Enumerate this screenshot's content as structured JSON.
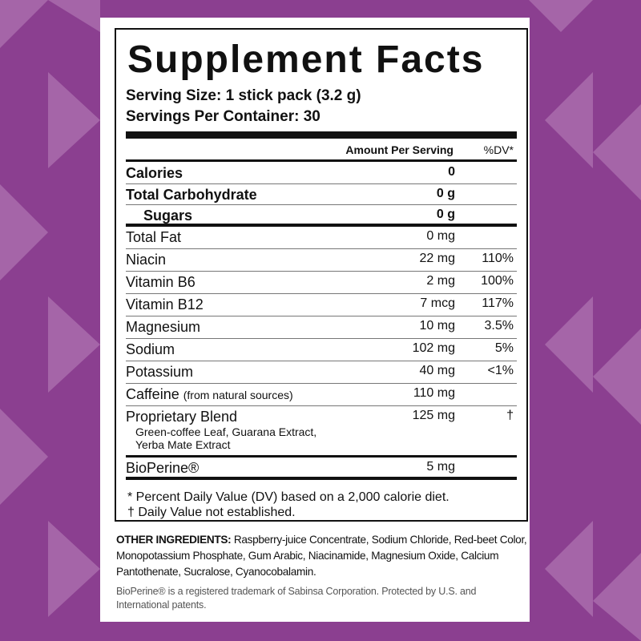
{
  "colors": {
    "background": "#8b3f90",
    "triangles": "#a565a8",
    "panel": "#ffffff"
  },
  "title": "Supplement Facts",
  "serving_size": "Serving Size: 1 stick pack (3.2 g)",
  "servings_per_container": "Servings Per Container: 30",
  "header": {
    "amount": "Amount Per Serving",
    "dv": "%DV*"
  },
  "rows": [
    {
      "name": "Calories",
      "amount": "0",
      "dv": ""
    },
    {
      "name": "Total Carbohydrate",
      "amount": "0 g",
      "dv": ""
    },
    {
      "name": "Sugars",
      "amount": "0 g",
      "dv": ""
    },
    {
      "name": "Total Fat",
      "amount": "0 mg",
      "dv": ""
    },
    {
      "name": "Niacin",
      "amount": "22 mg",
      "dv": "110%"
    },
    {
      "name": "Vitamin B6",
      "amount": "2 mg",
      "dv": "100%"
    },
    {
      "name": "Vitamin B12",
      "amount": "7 mcg",
      "dv": "117%"
    },
    {
      "name": "Magnesium",
      "amount": "10 mg",
      "dv": "3.5%"
    },
    {
      "name": "Sodium",
      "amount": "102 mg",
      "dv": "5%"
    },
    {
      "name": "Potassium",
      "amount": "40 mg",
      "dv": "<1%"
    },
    {
      "name": "Caffeine",
      "note": "(from natural sources)",
      "amount": "110 mg",
      "dv": ""
    },
    {
      "name": "Proprietary Blend",
      "sub": "Green-coffee Leaf, Guarana Extract,",
      "sub2": "Yerba Mate Extract",
      "amount": "125 mg",
      "dv": "†"
    },
    {
      "name": "BioPerine®",
      "amount": "5 mg",
      "dv": ""
    }
  ],
  "footnotes": [
    "* Percent Daily Value (DV) based on a 2,000 calorie diet.",
    "† Daily Value not established."
  ],
  "other_ingredients": {
    "label": "OTHER INGREDIENTS:",
    "text": " Raspberry-juice Concentrate, Sodium Chloride, Red-beet Color, Monopotassium Phosphate, Gum Arabic, Niacinamide, Magnesium Oxide, Calcium Pantothenate, Sucralose, Cyanocobalamin."
  },
  "trademark": "BioPerine® is a registered trademark of Sabinsa Corporation. Protected by U.S. and International patents."
}
